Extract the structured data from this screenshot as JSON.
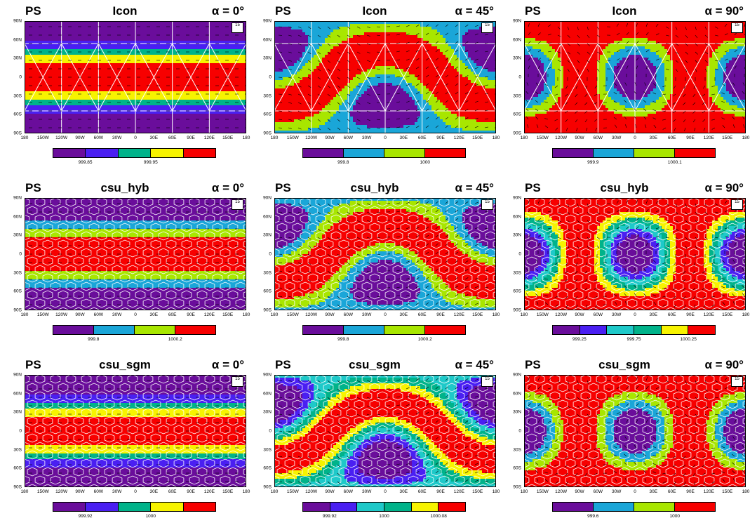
{
  "chart_data": [
    {
      "type": "heatmap",
      "panel_label": "PS",
      "model": "Icon",
      "alpha": "α = 0°",
      "ref_vector": "15",
      "colorbar": {
        "colors": [
          "#6a0d9b",
          "#4a1ff2",
          "#00b38a",
          "#f7f300",
          "#f70000"
        ],
        "labels": [
          {
            "text": "999.85",
            "boundary": 1
          },
          {
            "text": "999.95",
            "boundary": 3
          }
        ]
      },
      "pattern": "zonal",
      "grid": "icos-triangle",
      "x_ticks": [
        "180",
        "150W",
        "120W",
        "90W",
        "60W",
        "30W",
        "0",
        "30E",
        "60E",
        "90E",
        "120E",
        "150E",
        "180"
      ],
      "y_ticks": [
        "90N",
        "60N",
        "30N",
        "0",
        "30S",
        "60S",
        "90S"
      ]
    },
    {
      "type": "heatmap",
      "panel_label": "PS",
      "model": "Icon",
      "alpha": "α = 45°",
      "ref_vector": "15",
      "colorbar": {
        "colors": [
          "#6a0d9b",
          "#1aa6d8",
          "#a8e600",
          "#f70000"
        ],
        "labels": [
          {
            "text": "999.8",
            "boundary": 1
          },
          {
            "text": "1000",
            "boundary": 3
          }
        ]
      },
      "pattern": "tilted",
      "grid": "icos-triangle",
      "x_ticks": [
        "180",
        "150W",
        "120W",
        "90W",
        "60W",
        "30W",
        "0",
        "30E",
        "60E",
        "90E",
        "120E",
        "150E",
        "180"
      ],
      "y_ticks": [
        "90N",
        "60N",
        "30N",
        "0",
        "30S",
        "60S",
        "90S"
      ]
    },
    {
      "type": "heatmap",
      "panel_label": "PS",
      "model": "Icon",
      "alpha": "α = 90°",
      "ref_vector": "15",
      "colorbar": {
        "colors": [
          "#6a0d9b",
          "#1aa6d8",
          "#a8e600",
          "#f70000"
        ],
        "labels": [
          {
            "text": "999.9",
            "boundary": 1
          },
          {
            "text": "1000.1",
            "boundary": 3
          }
        ]
      },
      "pattern": "meridional",
      "grid": "icos-triangle",
      "x_ticks": [
        "180",
        "150W",
        "120W",
        "90W",
        "60W",
        "30W",
        "0",
        "30E",
        "60E",
        "90E",
        "120E",
        "150E",
        "180"
      ],
      "y_ticks": [
        "90N",
        "60N",
        "30N",
        "0",
        "30S",
        "60S",
        "90S"
      ]
    },
    {
      "type": "heatmap",
      "panel_label": "PS",
      "model": "csu_hyb",
      "alpha": "α = 0°",
      "ref_vector": "15",
      "colorbar": {
        "colors": [
          "#6a0d9b",
          "#1aa6d8",
          "#a8e600",
          "#f70000"
        ],
        "labels": [
          {
            "text": "999.8",
            "boundary": 1
          },
          {
            "text": "1000.2",
            "boundary": 3
          }
        ]
      },
      "pattern": "zonal",
      "grid": "hex",
      "x_ticks": [
        "180",
        "150W",
        "120W",
        "90W",
        "60W",
        "30W",
        "0",
        "30E",
        "60E",
        "90E",
        "120E",
        "150E",
        "180"
      ],
      "y_ticks": [
        "90N",
        "60N",
        "30N",
        "0",
        "30S",
        "60S",
        "90S"
      ]
    },
    {
      "type": "heatmap",
      "panel_label": "PS",
      "model": "csu_hyb",
      "alpha": "α = 45°",
      "ref_vector": "15",
      "colorbar": {
        "colors": [
          "#6a0d9b",
          "#1aa6d8",
          "#a8e600",
          "#f70000"
        ],
        "labels": [
          {
            "text": "999.8",
            "boundary": 1
          },
          {
            "text": "1000.2",
            "boundary": 3
          }
        ]
      },
      "pattern": "tilted",
      "grid": "hex",
      "x_ticks": [
        "180",
        "150W",
        "120W",
        "90W",
        "60W",
        "30W",
        "0",
        "30E",
        "60E",
        "90E",
        "120E",
        "150E",
        "180"
      ],
      "y_ticks": [
        "90N",
        "60N",
        "30N",
        "0",
        "30S",
        "60S",
        "90S"
      ]
    },
    {
      "type": "heatmap",
      "panel_label": "PS",
      "model": "csu_hyb",
      "alpha": "α = 90°",
      "ref_vector": "15",
      "colorbar": {
        "colors": [
          "#6a0d9b",
          "#4a1ff2",
          "#1ec9c9",
          "#00b38a",
          "#f7f300",
          "#f70000"
        ],
        "labels": [
          {
            "text": "999.25",
            "boundary": 1
          },
          {
            "text": "999.75",
            "boundary": 3
          },
          {
            "text": "1000.25",
            "boundary": 5
          }
        ]
      },
      "pattern": "meridional",
      "grid": "hex",
      "x_ticks": [
        "180",
        "150W",
        "120W",
        "90W",
        "60W",
        "30W",
        "0",
        "30E",
        "60E",
        "90E",
        "120E",
        "150E",
        "180"
      ],
      "y_ticks": [
        "90N",
        "60N",
        "30N",
        "0",
        "30S",
        "60S",
        "90S"
      ]
    },
    {
      "type": "heatmap",
      "panel_label": "PS",
      "model": "csu_sgm",
      "alpha": "α = 0°",
      "ref_vector": "15",
      "colorbar": {
        "colors": [
          "#6a0d9b",
          "#4a1ff2",
          "#00b38a",
          "#f7f300",
          "#f70000"
        ],
        "labels": [
          {
            "text": "999.92",
            "boundary": 1
          },
          {
            "text": "1000",
            "boundary": 3
          }
        ]
      },
      "pattern": "zonal",
      "grid": "hex",
      "x_ticks": [
        "180",
        "150W",
        "120W",
        "90W",
        "60W",
        "30W",
        "0",
        "30E",
        "60E",
        "90E",
        "120E",
        "150E",
        "180"
      ],
      "y_ticks": [
        "90N",
        "60N",
        "30N",
        "0",
        "30S",
        "60S",
        "90S"
      ]
    },
    {
      "type": "heatmap",
      "panel_label": "PS",
      "model": "csu_sgm",
      "alpha": "α = 45°",
      "ref_vector": "15",
      "colorbar": {
        "colors": [
          "#6a0d9b",
          "#4a1ff2",
          "#1ec9c9",
          "#00b38a",
          "#f7f300",
          "#f70000"
        ],
        "labels": [
          {
            "text": "999.92",
            "boundary": 1
          },
          {
            "text": "1000",
            "boundary": 3
          },
          {
            "text": "1000.08",
            "boundary": 5
          }
        ]
      },
      "pattern": "tilted",
      "grid": "hex",
      "x_ticks": [
        "180",
        "150W",
        "120W",
        "90W",
        "60W",
        "30W",
        "0",
        "30E",
        "60E",
        "90E",
        "120E",
        "150E",
        "180"
      ],
      "y_ticks": [
        "90N",
        "60N",
        "30N",
        "0",
        "30S",
        "60S",
        "90S"
      ]
    },
    {
      "type": "heatmap",
      "panel_label": "PS",
      "model": "csu_sgm",
      "alpha": "α = 90°",
      "ref_vector": "15",
      "colorbar": {
        "colors": [
          "#6a0d9b",
          "#1aa6d8",
          "#a8e600",
          "#f70000"
        ],
        "labels": [
          {
            "text": "999.6",
            "boundary": 1
          },
          {
            "text": "1000",
            "boundary": 3
          }
        ]
      },
      "pattern": "meridional",
      "grid": "hex",
      "x_ticks": [
        "180",
        "150W",
        "120W",
        "90W",
        "60W",
        "30W",
        "0",
        "30E",
        "60E",
        "90E",
        "120E",
        "150E",
        "180"
      ],
      "y_ticks": [
        "90N",
        "60N",
        "30N",
        "0",
        "30S",
        "60S",
        "90S"
      ]
    }
  ]
}
